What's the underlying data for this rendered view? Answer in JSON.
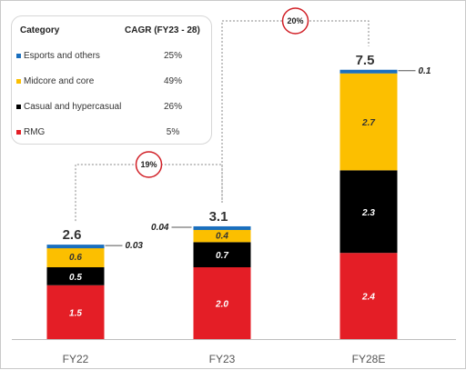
{
  "chart_data": {
    "type": "bar",
    "stacked": true,
    "categories": [
      "FY22",
      "FY23",
      "FY28E"
    ],
    "series": [
      {
        "name": "RMG",
        "values": [
          1.5,
          2.0,
          2.4
        ],
        "color": "#e41e26",
        "label_color": "#ffffff"
      },
      {
        "name": "Casual and hypercasual",
        "values": [
          0.5,
          0.7,
          2.3
        ],
        "color": "#000000",
        "label_color": "#ffffff"
      },
      {
        "name": "Midcore and core",
        "values": [
          0.6,
          0.4,
          2.7
        ],
        "color": "#fcbf00",
        "label_color": "#333333"
      },
      {
        "name": "Esports and others",
        "values": [
          0.03,
          0.04,
          0.1
        ],
        "color": "#1a6fbe",
        "label_color": "#222222"
      }
    ],
    "value_labels": [
      [
        "1.5",
        "0.5",
        "0.6",
        "0.03"
      ],
      [
        "2.0",
        "0.7",
        "0.4",
        "0.04"
      ],
      [
        "2.4",
        "2.3",
        "2.7",
        "0.1"
      ]
    ],
    "totals": [
      "2.6",
      "3.1",
      "7.5"
    ],
    "cagr_callouts": [
      {
        "from": "FY22",
        "to": "FY23",
        "label": "19%"
      },
      {
        "from": "FY23",
        "to": "FY28E",
        "label": "20%"
      }
    ],
    "ylim": [
      0,
      7.75
    ],
    "xlabel": "",
    "ylabel": "",
    "grid": false
  },
  "legend": {
    "header_category": "Category",
    "header_cagr": "CAGR (FY23 - 28)",
    "items": [
      {
        "label": "Esports and others",
        "cagr": "25%",
        "color": "#1a6fbe"
      },
      {
        "label": "Midcore and core",
        "cagr": "49%",
        "color": "#fcbf00"
      },
      {
        "label": "Casual and hypercasual",
        "cagr": "26%",
        "color": "#000000"
      },
      {
        "label": "RMG",
        "cagr": "5%",
        "color": "#e41e26"
      }
    ]
  }
}
